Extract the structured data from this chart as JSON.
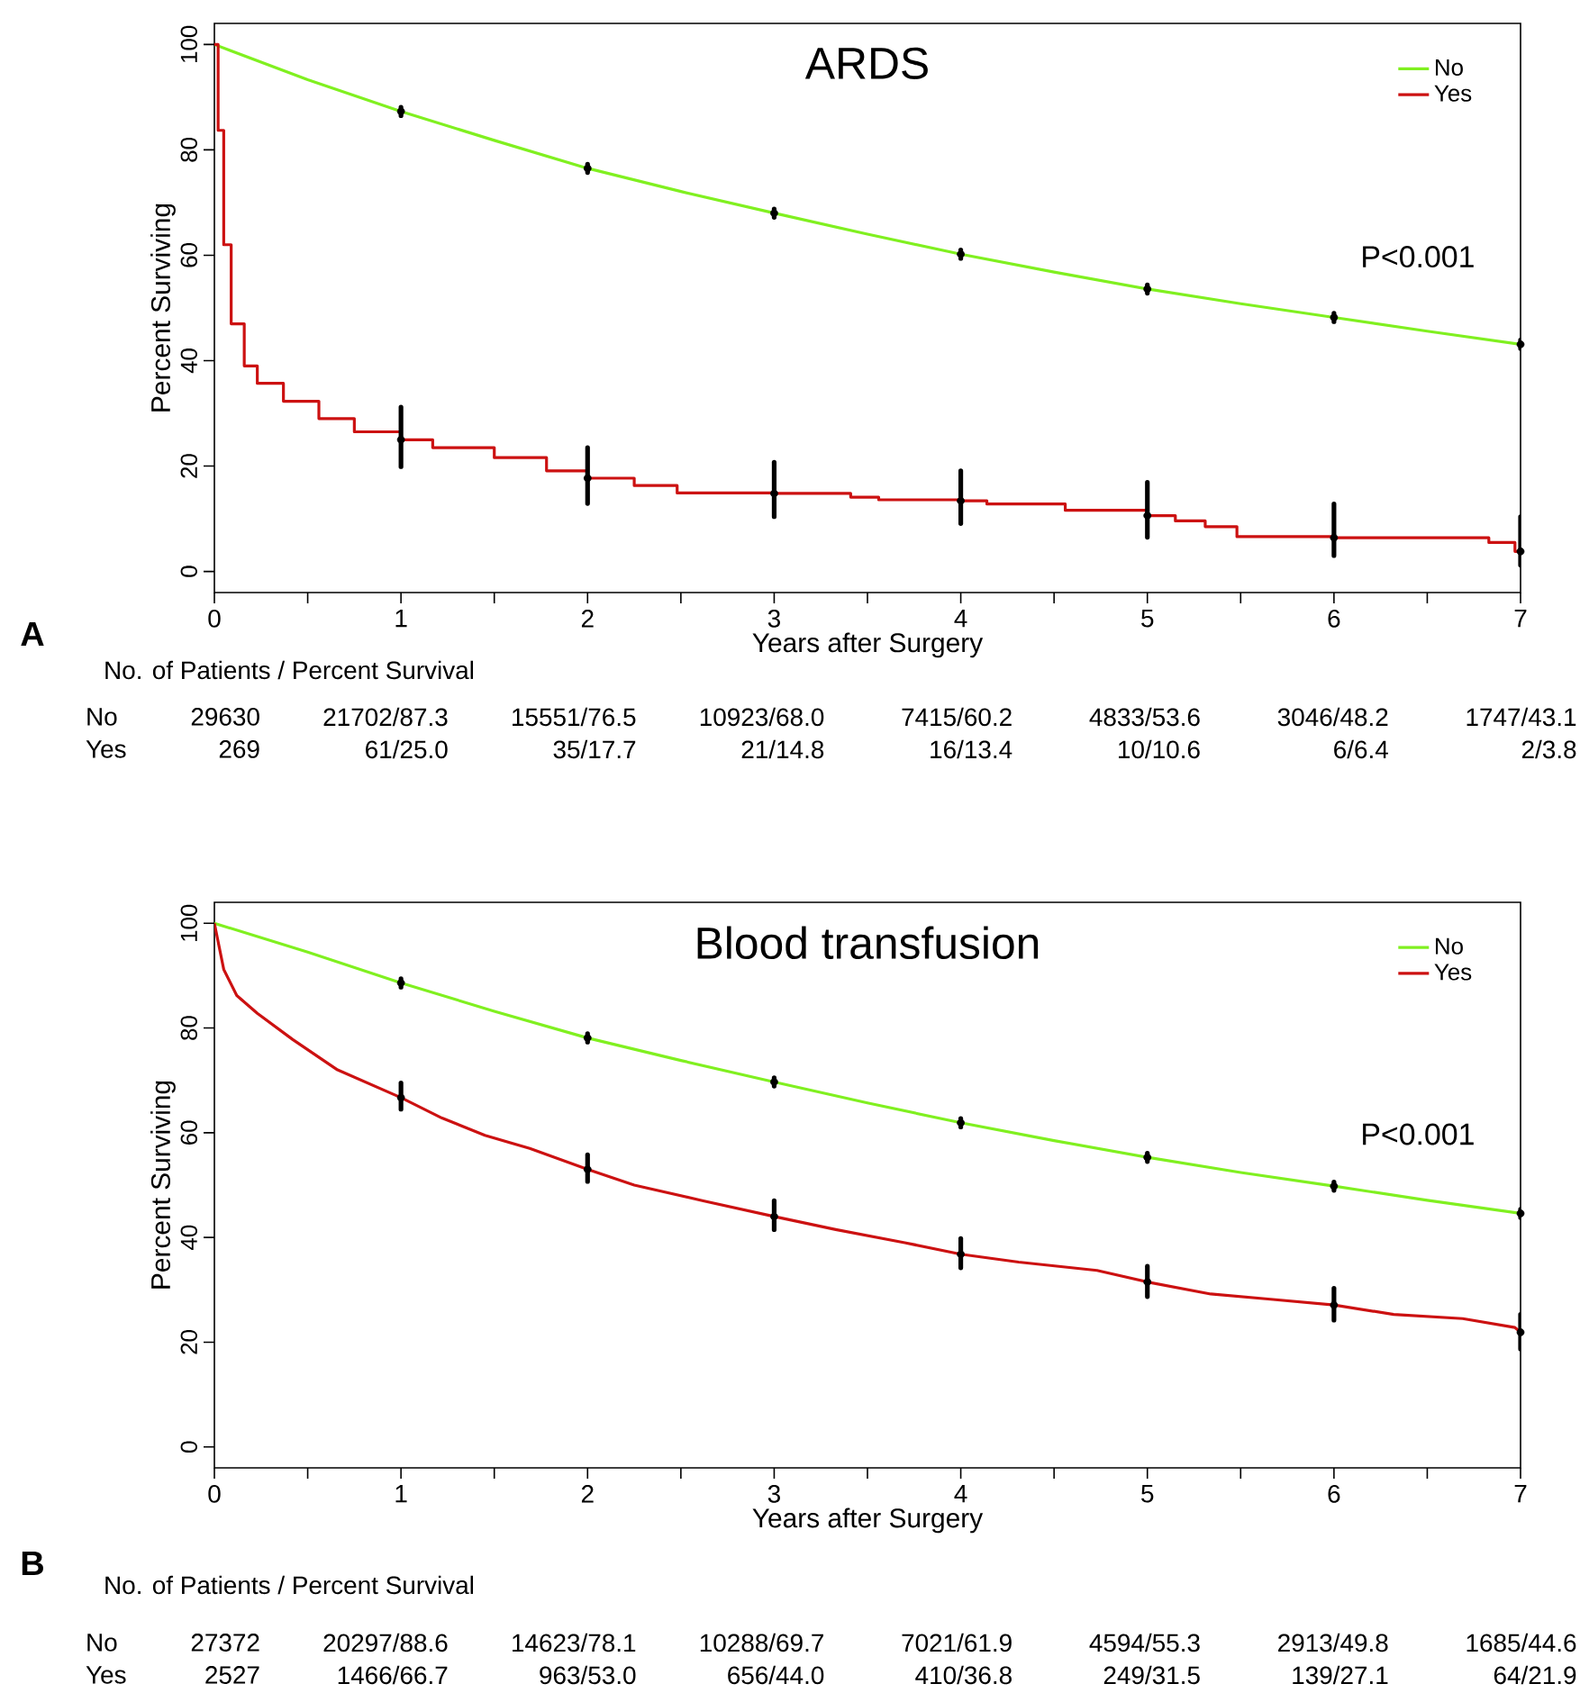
{
  "chart_data": [
    {
      "type": "line",
      "title": "ARDS",
      "xlabel": "Years after Surgery",
      "ylabel": "Percent Surviving",
      "xlim": [
        0,
        7
      ],
      "ylim": [
        -4,
        104
      ],
      "xticks": [
        0,
        {
          "value": 0.5,
          "label": null
        },
        1,
        {
          "value": 1.5,
          "label": null
        },
        2,
        {
          "value": 2.5,
          "label": null
        },
        3,
        {
          "value": 3.5,
          "label": null
        },
        4,
        {
          "value": 4.5,
          "label": null
        },
        5,
        {
          "value": 5.5,
          "label": null
        },
        6,
        {
          "value": 6.5,
          "label": null
        },
        7
      ],
      "yticks": [
        0,
        20,
        40,
        60,
        80,
        100
      ],
      "legend": "top right",
      "series": [
        {
          "name": "No",
          "color": "#80f020",
          "x": [
            0,
            0.5,
            1,
            1.5,
            2,
            2.5,
            3,
            3.5,
            4,
            4.5,
            5,
            5.5,
            6,
            6.5,
            7
          ],
          "values": [
            100,
            93.3,
            87.3,
            81.8,
            76.5,
            72.1,
            68.0,
            64,
            60.2,
            56.8,
            53.6,
            50.8,
            48.2,
            45.6,
            43.1
          ],
          "errors": [
            null,
            null,
            0.8,
            null,
            0.8,
            null,
            0.8,
            null,
            0.8,
            null,
            0.8,
            null,
            0.8,
            null,
            0.8
          ]
        },
        {
          "name": "Yes",
          "color": "#cc1111",
          "type": "step",
          "x": [
            0,
            0.02,
            0.05,
            0.09,
            0.16,
            0.23,
            0.37,
            0.56,
            0.75,
            1,
            1.17,
            1.5,
            1.78,
            2,
            2.25,
            2.48,
            3,
            3.41,
            3.56,
            4,
            4.14,
            4.56,
            5,
            5.15,
            5.31,
            5.48,
            6,
            6.83,
            6.97,
            7
          ],
          "values": [
            100,
            83.7,
            62,
            47,
            39,
            35.7,
            32.3,
            29,
            26.5,
            25.0,
            23.5,
            21.6,
            19.1,
            17.7,
            16.3,
            14.9,
            14.8,
            14.1,
            13.6,
            13.4,
            12.8,
            11.6,
            10.6,
            9.6,
            8.5,
            6.6,
            6.4,
            5.5,
            3.8,
            3.8
          ],
          "errors": [
            null,
            null,
            null,
            null,
            null,
            null,
            null,
            null,
            null,
            [
              19.9,
              31.2
            ],
            null,
            null,
            null,
            [
              12.9,
              23.5
            ],
            null,
            null,
            [
              10.4,
              20.7
            ],
            null,
            null,
            [
              9.1,
              19.1
            ],
            null,
            null,
            [
              6.5,
              16.9
            ],
            null,
            null,
            null,
            [
              3.0,
              12.8
            ],
            null,
            null,
            [
              1.2,
              10.4
            ]
          ]
        }
      ],
      "annotations": [
        "A",
        "P<0.001",
        "No. of Patients / Percent Survival",
        "No",
        "29630",
        "21702/87.3",
        "15551/76.5",
        "10923/68.0",
        "7415/60.2",
        "4833/53.6",
        "3046/48.2",
        "1747/43.1",
        "Yes",
        "269",
        "61/25.0",
        "35/17.7",
        "21/14.8",
        "16/13.4",
        "10/10.6",
        "6/6.4",
        "2/3.8"
      ]
    },
    {
      "type": "line",
      "title": "Blood transfusion",
      "xlabel": "Years after Surgery",
      "ylabel": "Percent Surviving",
      "xlim": [
        0,
        7
      ],
      "ylim": [
        -4,
        104
      ],
      "xticks": [
        0,
        {
          "value": 0.5,
          "label": null
        },
        1,
        {
          "value": 1.5,
          "label": null
        },
        2,
        {
          "value": 2.5,
          "label": null
        },
        3,
        {
          "value": 3.5,
          "label": null
        },
        4,
        {
          "value": 4.5,
          "label": null
        },
        5,
        {
          "value": 5.5,
          "label": null
        },
        6,
        {
          "value": 6.5,
          "label": null
        },
        7
      ],
      "yticks": [
        0,
        20,
        40,
        60,
        80,
        100
      ],
      "legend": "top right",
      "series": [
        {
          "name": "No",
          "color": "#80f020",
          "x": [
            0,
            0.5,
            1,
            1.5,
            2,
            2.5,
            3,
            3.5,
            4,
            4.5,
            5,
            5.5,
            6,
            6.5,
            7
          ],
          "values": [
            100,
            94.5,
            88.6,
            83.2,
            78.1,
            73.8,
            69.7,
            65.7,
            61.9,
            58.5,
            55.3,
            52.4,
            49.8,
            47.1,
            44.6
          ],
          "errors": [
            null,
            null,
            0.8,
            null,
            0.8,
            null,
            0.8,
            null,
            0.8,
            null,
            0.8,
            null,
            0.8,
            null,
            0.8
          ]
        },
        {
          "name": "Yes",
          "color": "#cc1111",
          "x": [
            0,
            0.05,
            0.12,
            0.23,
            0.42,
            0.66,
            1,
            1.22,
            1.45,
            1.69,
            2,
            2.25,
            2.62,
            3,
            3.33,
            3.7,
            4,
            4.31,
            4.73,
            5,
            5.34,
            5.66,
            6,
            6.32,
            6.69,
            6.97,
            7
          ],
          "values": [
            100,
            91.2,
            86.2,
            82.8,
            77.8,
            72,
            66.7,
            62.8,
            59.5,
            57,
            53.0,
            50,
            47,
            44.0,
            41.5,
            39,
            36.8,
            35.3,
            33.7,
            31.5,
            29.2,
            28.2,
            27.1,
            25.3,
            24.5,
            22.8,
            21.9
          ],
          "errors": [
            null,
            null,
            null,
            null,
            null,
            null,
            [
              64.5,
              69.5
            ],
            null,
            null,
            null,
            [
              50.7,
              55.8
            ],
            null,
            null,
            [
              41.5,
              47
            ],
            null,
            null,
            [
              34.2,
              39.8
            ],
            null,
            null,
            [
              28.7,
              34.5
            ],
            null,
            null,
            [
              24.2,
              30.3
            ],
            null,
            null,
            null,
            [
              18.7,
              25.3
            ]
          ]
        }
      ],
      "annotations": [
        "B",
        "P<0.001",
        "No. of Patients / Percent Survival",
        "No",
        "27372",
        "20297/88.6",
        "14623/78.1",
        "10288/69.7",
        "7021/61.9",
        "4594/55.3",
        "2913/49.8",
        "1685/44.6",
        "Yes",
        "2527",
        "1466/66.7",
        "963/53.0",
        "656/44.0",
        "410/36.8",
        "249/31.5",
        "139/27.1",
        "64/21.9"
      ]
    }
  ]
}
